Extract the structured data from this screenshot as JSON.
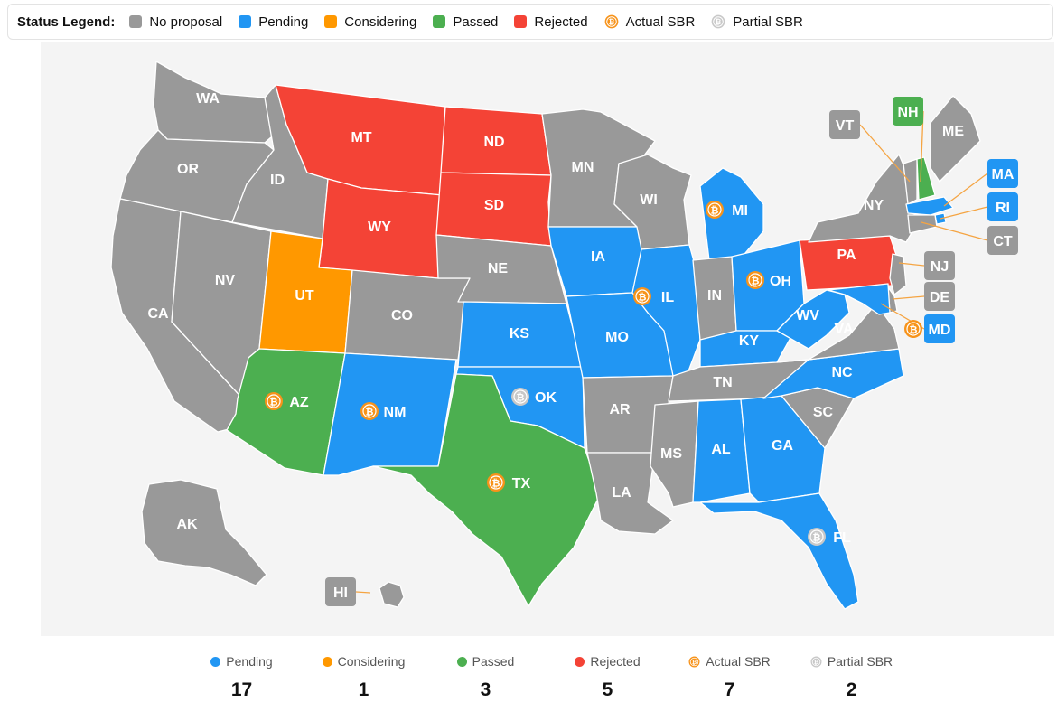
{
  "legend": {
    "title": "Status Legend:",
    "items": [
      {
        "key": "none",
        "label": "No proposal",
        "color": "#999999",
        "kind": "swatch"
      },
      {
        "key": "pending",
        "label": "Pending",
        "color": "#2196f3",
        "kind": "swatch"
      },
      {
        "key": "considering",
        "label": "Considering",
        "color": "#ff9800",
        "kind": "swatch"
      },
      {
        "key": "passed",
        "label": "Passed",
        "color": "#4caf50",
        "kind": "swatch"
      },
      {
        "key": "rejected",
        "label": "Rejected",
        "color": "#f44336",
        "kind": "swatch"
      },
      {
        "key": "actual",
        "label": "Actual SBR",
        "color": "#f7931a",
        "kind": "bitcoin-icon"
      },
      {
        "key": "partial",
        "label": "Partial SBR",
        "color": "#c8c8c8",
        "kind": "bitcoin-icon"
      }
    ]
  },
  "states": [
    {
      "abbr": "WA",
      "status": "none"
    },
    {
      "abbr": "OR",
      "status": "none"
    },
    {
      "abbr": "CA",
      "status": "none"
    },
    {
      "abbr": "NV",
      "status": "none"
    },
    {
      "abbr": "ID",
      "status": "none"
    },
    {
      "abbr": "MT",
      "status": "rejected"
    },
    {
      "abbr": "WY",
      "status": "rejected"
    },
    {
      "abbr": "UT",
      "status": "considering"
    },
    {
      "abbr": "AZ",
      "status": "passed",
      "sbr": "actual"
    },
    {
      "abbr": "CO",
      "status": "none"
    },
    {
      "abbr": "NM",
      "status": "pending",
      "sbr": "actual"
    },
    {
      "abbr": "ND",
      "status": "rejected"
    },
    {
      "abbr": "SD",
      "status": "rejected"
    },
    {
      "abbr": "NE",
      "status": "none"
    },
    {
      "abbr": "KS",
      "status": "pending"
    },
    {
      "abbr": "OK",
      "status": "pending",
      "sbr": "partial"
    },
    {
      "abbr": "TX",
      "status": "passed",
      "sbr": "actual"
    },
    {
      "abbr": "MN",
      "status": "none"
    },
    {
      "abbr": "IA",
      "status": "pending"
    },
    {
      "abbr": "MO",
      "status": "pending"
    },
    {
      "abbr": "AR",
      "status": "none"
    },
    {
      "abbr": "LA",
      "status": "none"
    },
    {
      "abbr": "WI",
      "status": "none"
    },
    {
      "abbr": "IL",
      "status": "pending",
      "sbr": "actual"
    },
    {
      "abbr": "MI",
      "status": "pending",
      "sbr": "actual"
    },
    {
      "abbr": "IN",
      "status": "none"
    },
    {
      "abbr": "OH",
      "status": "pending",
      "sbr": "actual"
    },
    {
      "abbr": "KY",
      "status": "pending"
    },
    {
      "abbr": "TN",
      "status": "none"
    },
    {
      "abbr": "MS",
      "status": "none"
    },
    {
      "abbr": "AL",
      "status": "pending"
    },
    {
      "abbr": "GA",
      "status": "pending"
    },
    {
      "abbr": "FL",
      "status": "pending",
      "sbr": "partial"
    },
    {
      "abbr": "SC",
      "status": "none"
    },
    {
      "abbr": "NC",
      "status": "pending"
    },
    {
      "abbr": "VA",
      "status": "none"
    },
    {
      "abbr": "WV",
      "status": "pending"
    },
    {
      "abbr": "PA",
      "status": "rejected"
    },
    {
      "abbr": "NY",
      "status": "none"
    },
    {
      "abbr": "ME",
      "status": "none"
    },
    {
      "abbr": "AK",
      "status": "none"
    },
    {
      "abbr": "HI",
      "status": "none"
    },
    {
      "abbr": "VT",
      "status": "none"
    },
    {
      "abbr": "NH",
      "status": "passed"
    },
    {
      "abbr": "MA",
      "status": "pending"
    },
    {
      "abbr": "RI",
      "status": "pending"
    },
    {
      "abbr": "CT",
      "status": "none"
    },
    {
      "abbr": "NJ",
      "status": "none"
    },
    {
      "abbr": "DE",
      "status": "none"
    },
    {
      "abbr": "MD",
      "status": "pending",
      "sbr": "actual"
    }
  ],
  "summary": [
    {
      "key": "pending",
      "label": "Pending",
      "count": "17"
    },
    {
      "key": "considering",
      "label": "Considering",
      "count": "1"
    },
    {
      "key": "passed",
      "label": "Passed",
      "count": "3"
    },
    {
      "key": "rejected",
      "label": "Rejected",
      "count": "5"
    },
    {
      "key": "actual",
      "label": "Actual SBR",
      "count": "7"
    },
    {
      "key": "partial",
      "label": "Partial SBR",
      "count": "2"
    }
  ]
}
